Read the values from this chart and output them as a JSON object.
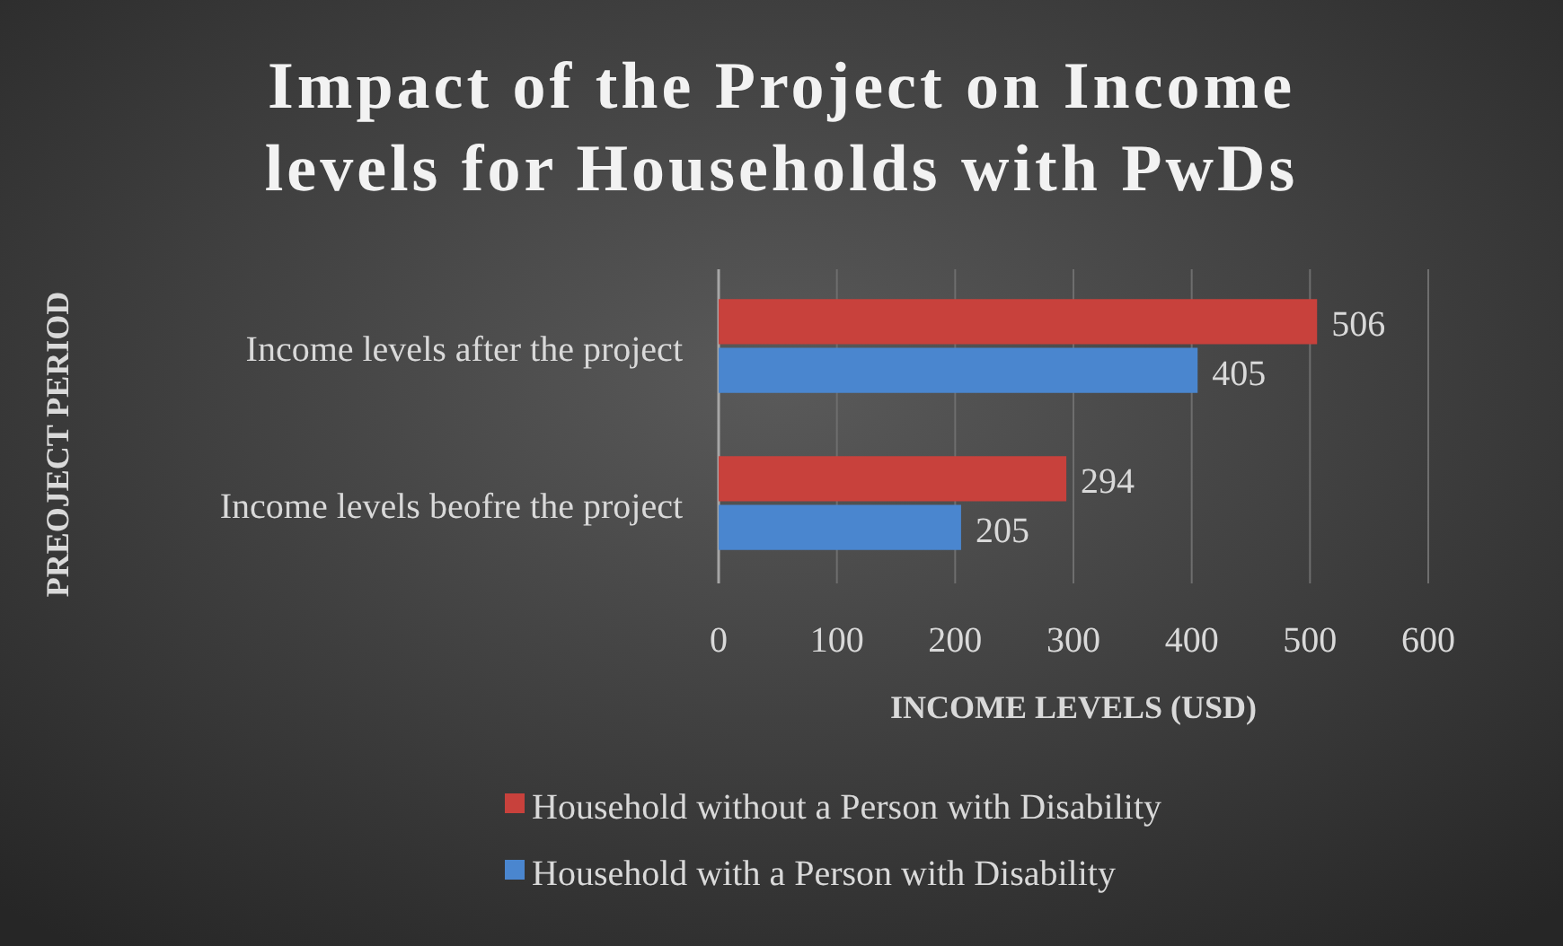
{
  "chart_data": {
    "type": "bar",
    "orientation": "horizontal",
    "title": "Impact of the Project on Income levels for Households with PwDs",
    "xlabel": "INCOME LEVELS (USD)",
    "ylabel": "PREOJECT PERIOD",
    "categories": [
      "Income levels after the project",
      "Income levels beofre the project"
    ],
    "series": [
      {
        "name": "Household without a Person with Disability",
        "color": "#c8413c",
        "values": [
          506,
          294
        ]
      },
      {
        "name": "Household with a Person with Disability",
        "color": "#4a86cf",
        "values": [
          405,
          205
        ]
      }
    ],
    "xlim": [
      0,
      600
    ],
    "xticks": [
      0,
      100,
      200,
      300,
      400,
      500,
      600
    ],
    "grid": "x",
    "data_labels": true,
    "legend": "bottom"
  }
}
